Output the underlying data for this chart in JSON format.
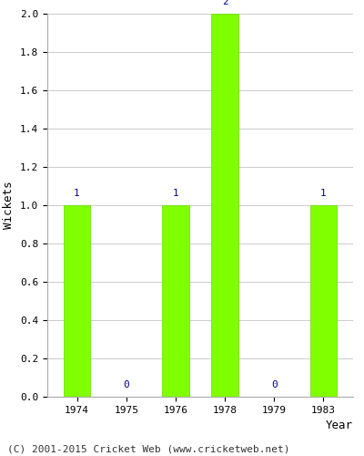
{
  "years": [
    1974,
    1975,
    1976,
    1978,
    1979,
    1983
  ],
  "wickets": [
    1,
    0,
    1,
    2,
    0,
    1
  ],
  "bar_color": "#7FFF00",
  "bar_edge_color": "#66DD00",
  "label_color": "#00008B",
  "xlabel": "Year",
  "ylabel": "Wickets",
  "ylim": [
    0,
    2.0
  ],
  "yticks": [
    0.0,
    0.2,
    0.4,
    0.6,
    0.8,
    1.0,
    1.2,
    1.4,
    1.6,
    1.8,
    2.0
  ],
  "background_color": "#ffffff",
  "plot_bg_color": "#ffffff",
  "footer": "(C) 2001-2015 Cricket Web (www.cricketweb.net)",
  "footer_fontsize": 8,
  "label_fontsize": 8,
  "axis_label_fontsize": 9,
  "tick_fontsize": 8,
  "grid_color": "#cccccc"
}
